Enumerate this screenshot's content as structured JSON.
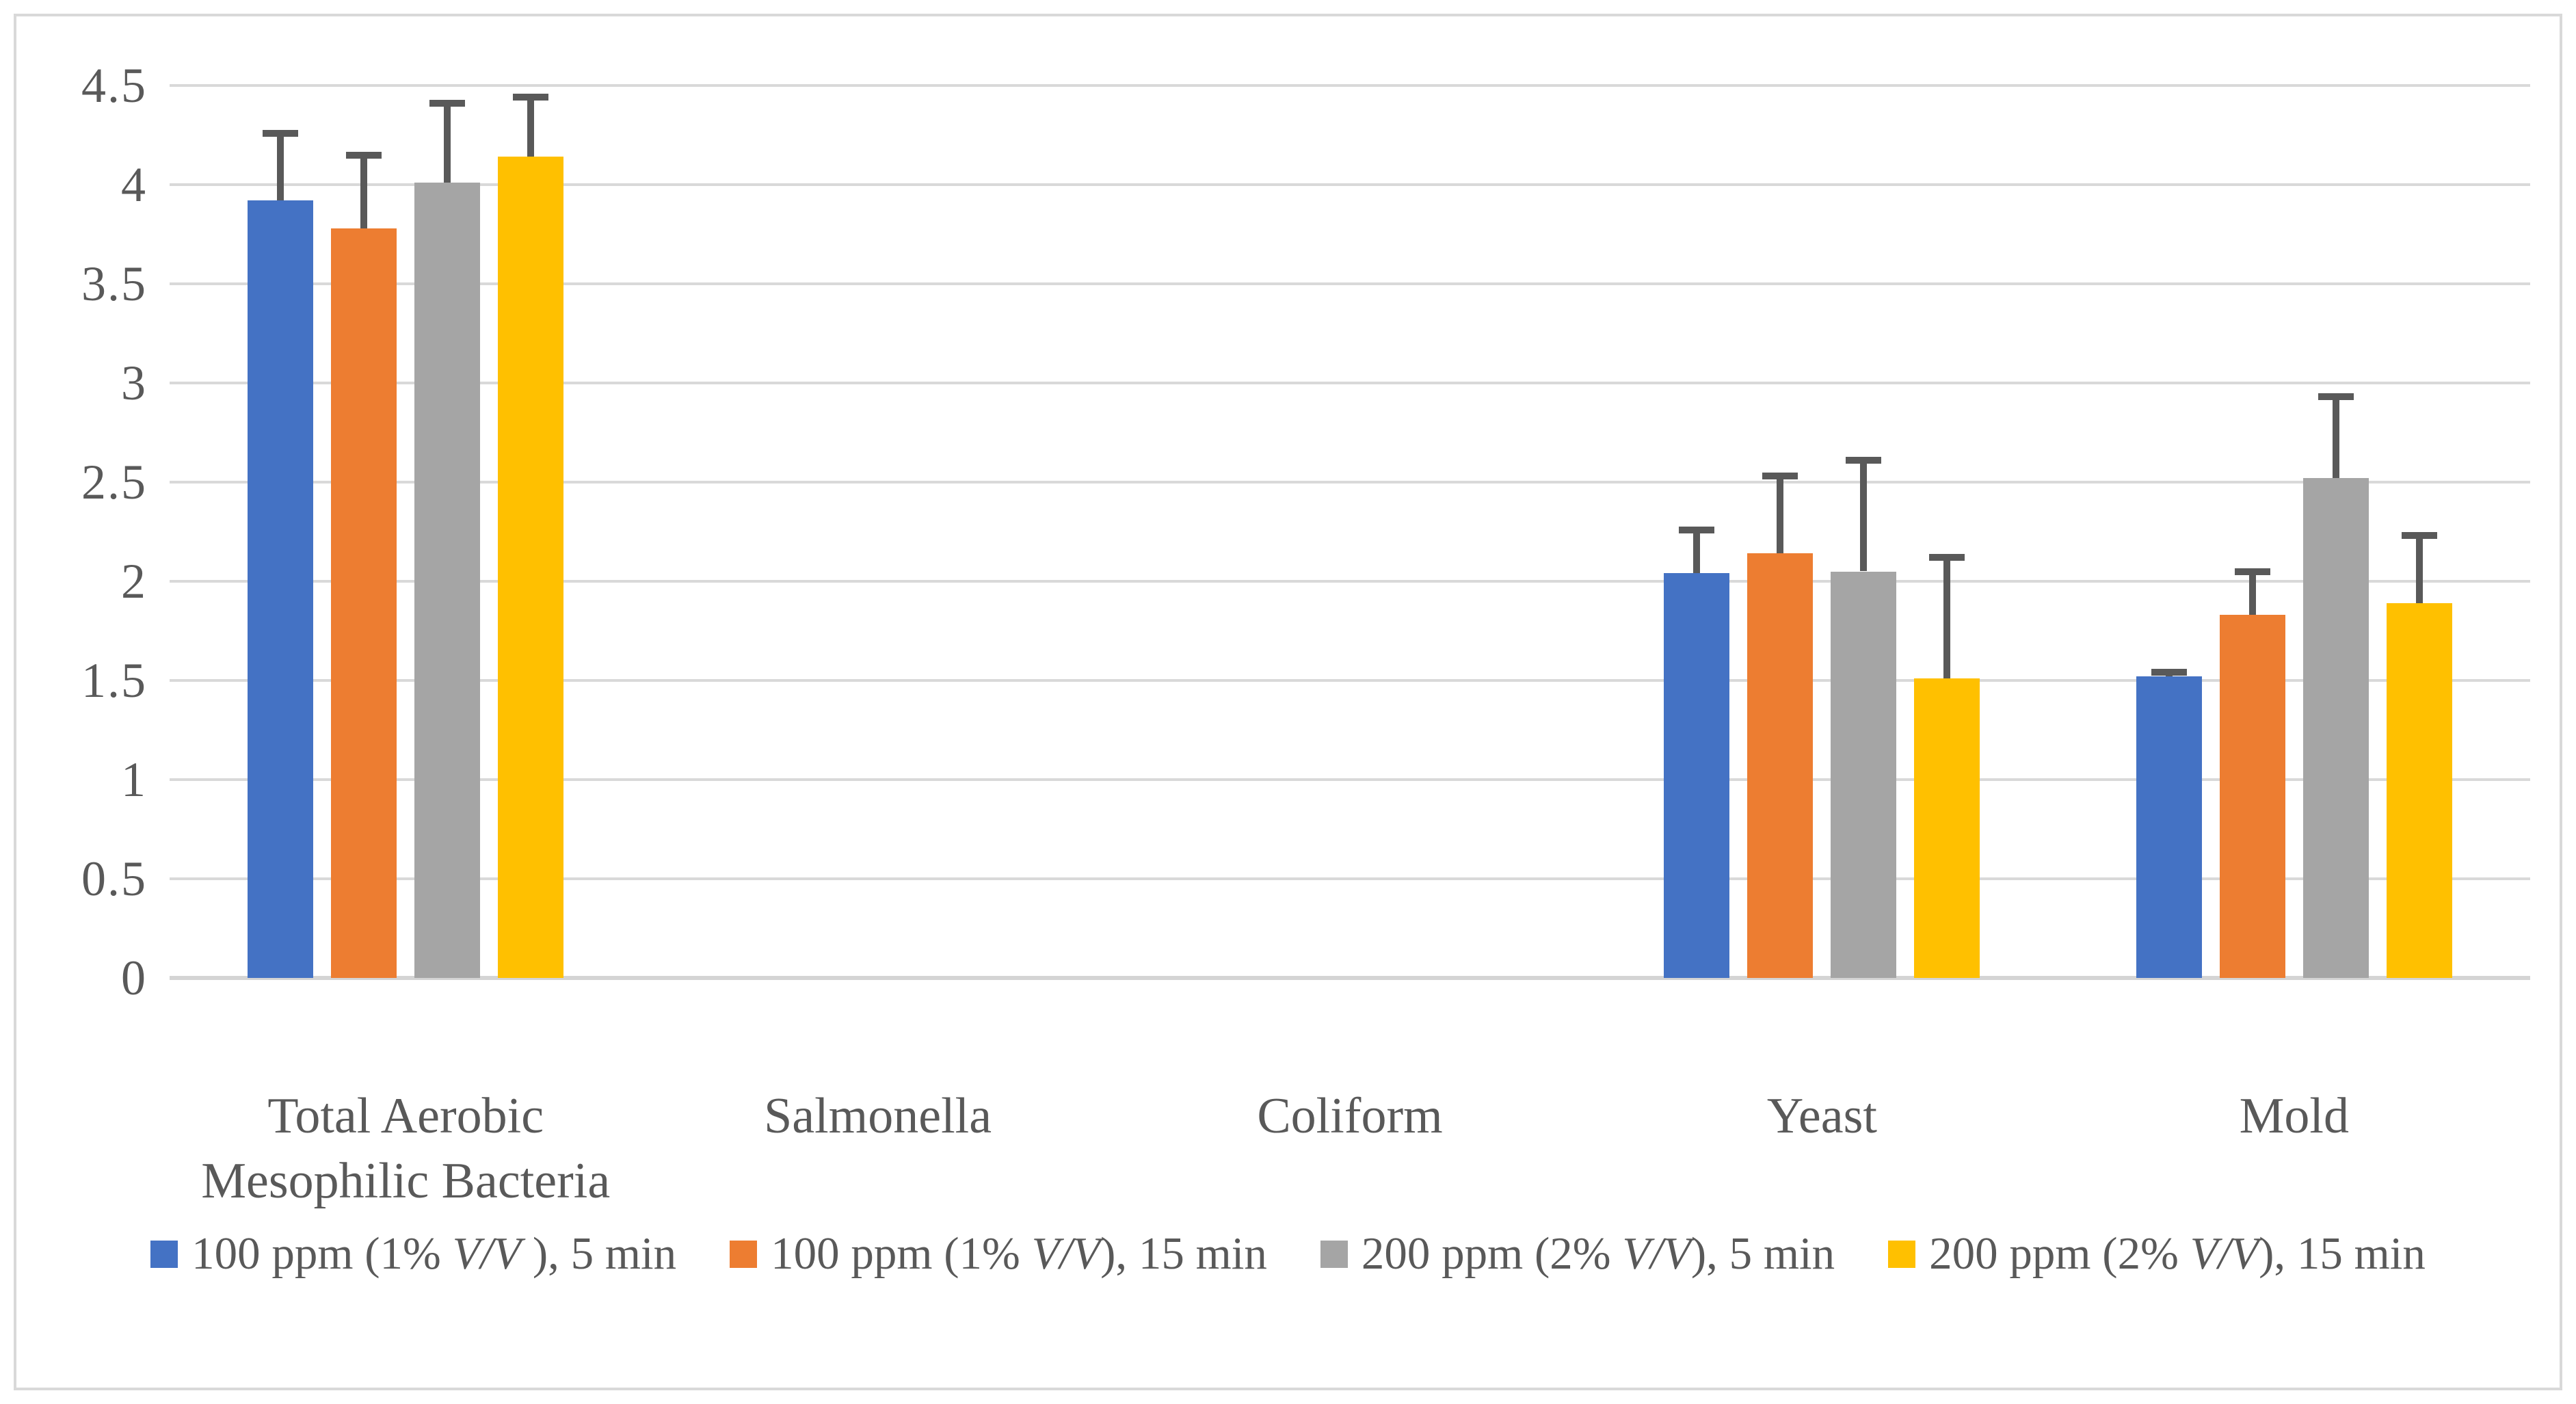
{
  "chart": {
    "background": "#FFFFFF",
    "border_color": "#D9D9D9",
    "grid_color": "#D9D9D9",
    "text_color": "#595959",
    "error_bar_color": "#595959"
  },
  "chart_data": {
    "type": "bar",
    "title": "",
    "xlabel": "",
    "ylabel": "",
    "ylim": [
      0,
      4.5
    ],
    "ytick_step": 0.5,
    "grid": true,
    "legend_position": "bottom",
    "y_ticks": [
      "0",
      "0.5",
      "1",
      "1.5",
      "2",
      "2.5",
      "3",
      "3.5",
      "4",
      "4.5"
    ],
    "categories": [
      "Total Aerobic Mesophilic Bacteria",
      "Salmonella",
      "Coliform",
      "Yeast",
      "Mold"
    ],
    "series": [
      {
        "name": "100 ppm (1% V/V ), 5 min",
        "name_parts": [
          {
            "t": "100 ppm (1% "
          },
          {
            "t": "V/V",
            "italic": true
          },
          {
            "t": " ), 5 min"
          }
        ],
        "color": "#4472C4",
        "values": [
          3.92,
          0,
          0,
          2.04,
          1.52
        ],
        "error_plus": [
          0.34,
          0,
          0,
          0.22,
          0.02
        ]
      },
      {
        "name": "100 ppm (1% V/V), 15 min",
        "name_parts": [
          {
            "t": "100 ppm (1% "
          },
          {
            "t": "V/V",
            "italic": true
          },
          {
            "t": "), 15 min"
          }
        ],
        "color": "#ED7D31",
        "values": [
          3.78,
          0,
          0,
          2.14,
          1.83
        ],
        "error_plus": [
          0.37,
          0,
          0,
          0.39,
          0.22
        ]
      },
      {
        "name": "200 ppm (2% V/V), 5 min",
        "name_parts": [
          {
            "t": "200 ppm (2% "
          },
          {
            "t": "V/V",
            "italic": true
          },
          {
            "t": "), 5 min"
          }
        ],
        "color": "#A5A5A5",
        "values": [
          4.01,
          0,
          0,
          2.05,
          2.52
        ],
        "error_plus": [
          0.4,
          0,
          0,
          0.56,
          0.41
        ]
      },
      {
        "name": "200 ppm (2% V/V), 15 min",
        "name_parts": [
          {
            "t": "200 ppm (2% "
          },
          {
            "t": "V/V",
            "italic": true
          },
          {
            "t": "), 15 min"
          }
        ],
        "color": "#FFC000",
        "values": [
          4.14,
          0,
          0,
          1.51,
          1.89
        ],
        "error_plus": [
          0.3,
          0,
          0,
          0.61,
          0.34
        ]
      }
    ]
  }
}
